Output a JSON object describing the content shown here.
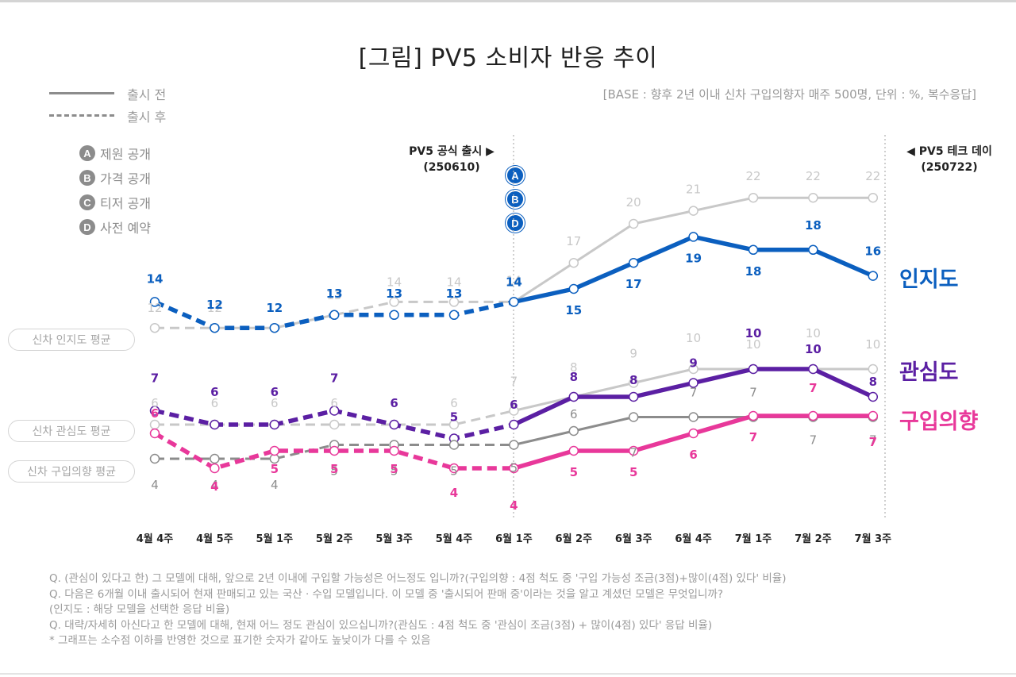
{
  "header": {
    "title": "[그림] PV5 소비자 반응 추이",
    "base_note": "[BASE : 향후 2년 이내 신차 구입의향자 매주 500명, 단위 : %, 복수응답]"
  },
  "legend": {
    "solid_label": "출시 전",
    "dashed_label": "출시 후",
    "events": [
      {
        "badge": "A",
        "label": "제원 공개"
      },
      {
        "badge": "B",
        "label": "가격 공개"
      },
      {
        "badge": "C",
        "label": "티저 공개"
      },
      {
        "badge": "D",
        "label": "사전 예약"
      }
    ]
  },
  "benchmarks": [
    {
      "label": "신차 인지도 평균"
    },
    {
      "label": "신차 관심도 평균"
    },
    {
      "label": "신차 구입의향 평균"
    }
  ],
  "annotations": {
    "launch": {
      "line1": "PV5 공식 출시 ▶",
      "line2": "(250610)",
      "badges": [
        "A",
        "B",
        "D"
      ]
    },
    "techday": {
      "line1": "◀ PV5 테크 데이",
      "line2": "(250722)"
    }
  },
  "notes": [
    "Q. (관심이 있다고 한) 그 모델에 대해, 앞으로 2년 이내에 구입할 가능성은 어느정도 입니까?(구입의향 : 4점 척도 중 '구입 가능성 조금(3점)+많이(4점) 있다' 비율)",
    "Q. 다음은 6개월 이내 출시되어 현재 판매되고 있는 국산 · 수입 모델입니다. 이 모델 중 '출시되어 판매 중'이라는 것을 알고 계셨던 모델은 무엇입니까?",
    "(인지도 : 해당 모델을 선택한 응답 비율)",
    "Q. 대략/자세히 아신다고 한 모델에 대해, 현재 어느 정도 관심이 있으십니까?(관심도 : 4점 척도 중 '관심이 조금(3점) + 많이(4점) 있다' 응답 비율)",
    "* 그래프는 소수점 이하를 반영한 것으로 표기한 숫자가 같아도 높낮이가 다를 수 있음"
  ],
  "chart_data": {
    "type": "line",
    "title": "[그림] PV5 소비자 반응 추이",
    "unit": "%",
    "categories": [
      "4월 4주",
      "4월 5주",
      "5월 1주",
      "5월 2주",
      "5월 3주",
      "5월 4주",
      "6월 1주",
      "6월 2주",
      "6월 3주",
      "6월 4주",
      "7월 1주",
      "7월 2주",
      "7월 3주"
    ],
    "launch_index": 6,
    "series": [
      {
        "name": "신차 인지도 평균",
        "color": "#c8c8c8",
        "values": [
          12,
          12,
          12,
          13,
          14,
          14,
          14,
          17,
          20,
          21,
          22,
          22,
          22
        ]
      },
      {
        "name": "인지도",
        "color": "#0b5fbf",
        "values": [
          14,
          12,
          12,
          13,
          13,
          13,
          14,
          15,
          17,
          19,
          18,
          18,
          16
        ]
      },
      {
        "name": "신차 관심도 평균",
        "color": "#c8c8c8",
        "values": [
          6,
          6,
          6,
          6,
          6,
          6,
          7,
          8,
          9,
          10,
          10,
          10,
          10
        ]
      },
      {
        "name": "관심도",
        "color": "#5b1fa3",
        "values": [
          7,
          6,
          6,
          7,
          6,
          5,
          6,
          8,
          8,
          9,
          10,
          10,
          8
        ]
      },
      {
        "name": "신차 구입의향 평균",
        "color": "#8c8c8c",
        "values": [
          4,
          4,
          4,
          5,
          5,
          5,
          5,
          6,
          7,
          7,
          7,
          7,
          7
        ]
      },
      {
        "name": "구입의향",
        "color": "#e8389a",
        "values": [
          6,
          4,
          5,
          5,
          5,
          4,
          4,
          5,
          5,
          6,
          7,
          7,
          7
        ]
      }
    ],
    "legend": {
      "solid": "출시 전",
      "dashed": "출시 후"
    },
    "xlabel": "",
    "ylabel": ""
  }
}
